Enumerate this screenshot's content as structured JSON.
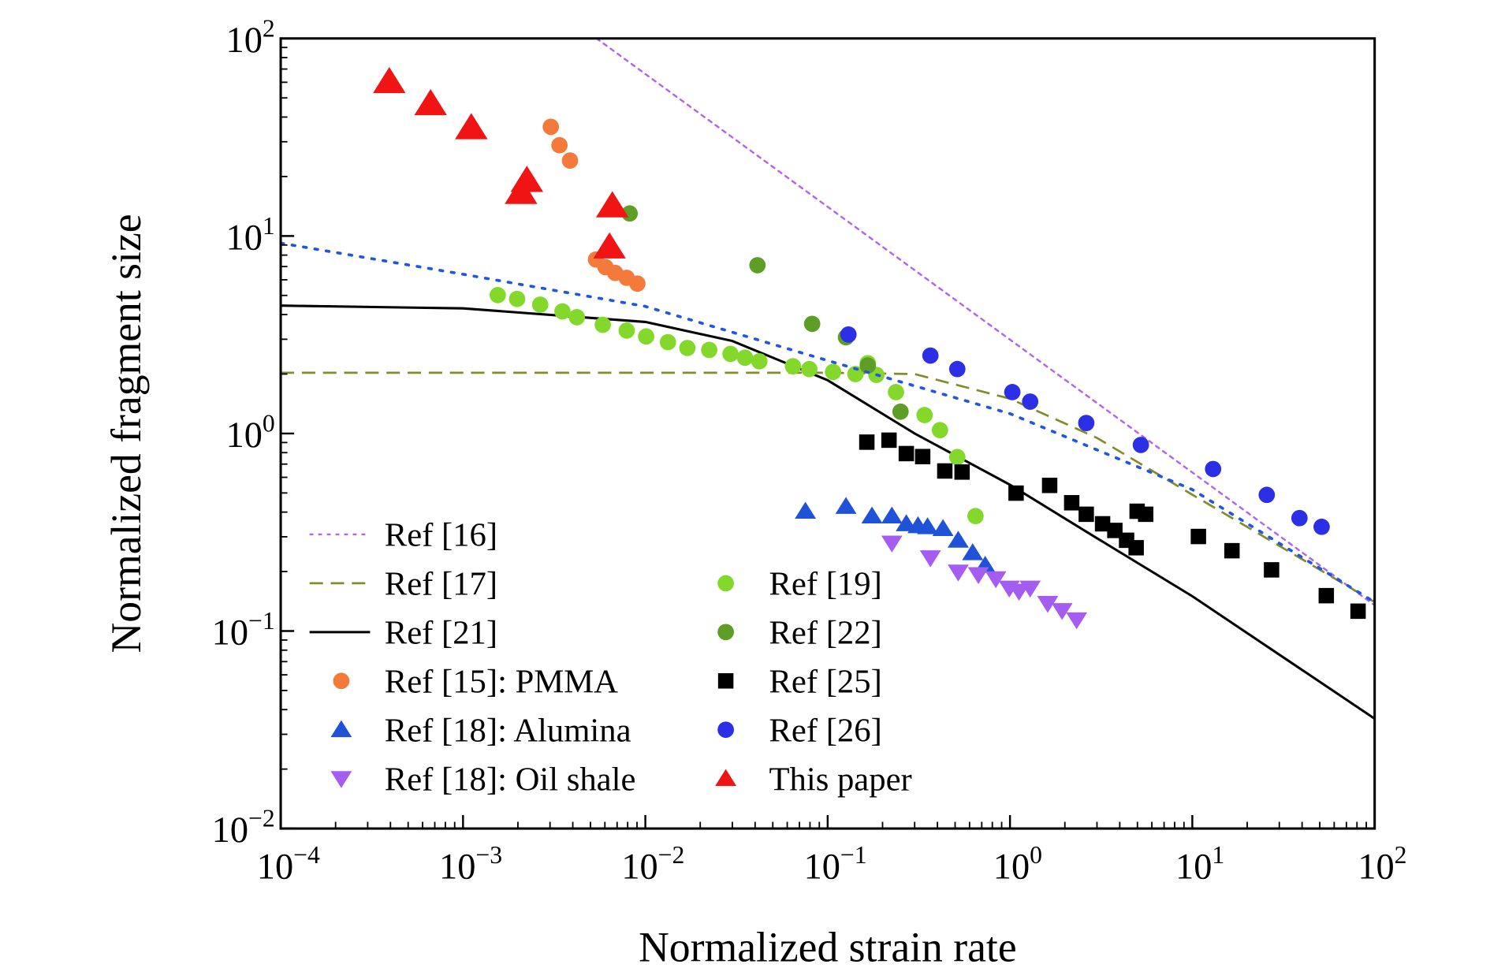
{
  "chart_data": {
    "type": "scatter",
    "xlabel": "Normalized strain rate",
    "ylabel": "Normalized fragment size",
    "xscale": "log",
    "yscale": "log",
    "xlim": [
      0.0001,
      100
    ],
    "ylim": [
      0.01,
      100
    ],
    "xticks": [
      {
        "value": 0.0001,
        "label": "10",
        "exponent": "−4"
      },
      {
        "value": 0.001,
        "label": "10",
        "exponent": "−3"
      },
      {
        "value": 0.01,
        "label": "10",
        "exponent": "−2"
      },
      {
        "value": 0.1,
        "label": "10",
        "exponent": "−1"
      },
      {
        "value": 1,
        "label": "10",
        "exponent": "0"
      },
      {
        "value": 10,
        "label": "10",
        "exponent": "1"
      },
      {
        "value": 100,
        "label": "10",
        "exponent": "2"
      }
    ],
    "yticks": [
      {
        "value": 0.01,
        "label": "10",
        "exponent": "−2"
      },
      {
        "value": 0.1,
        "label": "10",
        "exponent": "−1"
      },
      {
        "value": 1,
        "label": "10",
        "exponent": "0"
      },
      {
        "value": 10,
        "label": "10",
        "exponent": "1"
      },
      {
        "value": 100,
        "label": "10",
        "exponent": "2"
      }
    ],
    "series": [
      {
        "name": "Ref [16]",
        "kind": "line",
        "style": "dotted",
        "color": "#b264ec",
        "x": [
          0.0054,
          100
        ],
        "y": [
          100,
          0.135
        ]
      },
      {
        "name": "Ref [17]",
        "kind": "line",
        "style": "dashed",
        "color": "#858a2c",
        "x": [
          0.0001,
          0.1,
          0.3,
          1,
          3,
          10,
          30,
          100
        ],
        "y": [
          2.03,
          2.03,
          2.0,
          1.5,
          0.95,
          0.49,
          0.27,
          0.14
        ]
      },
      {
        "name": "Ref [21]",
        "kind": "line",
        "style": "solid",
        "color": "#000000",
        "x": [
          0.0001,
          0.001,
          0.01,
          0.03,
          0.1,
          0.3,
          1,
          3,
          10,
          100
        ],
        "y": [
          4.44,
          4.3,
          3.67,
          2.94,
          1.86,
          1.0,
          0.55,
          0.295,
          0.15,
          0.036
        ]
      },
      {
        "name": "Ref [15]: PMMA",
        "kind": "points",
        "marker": "circle",
        "color": "#f47a3c",
        "x": [
          0.00303,
          0.00338,
          0.00386,
          0.00536,
          0.00605,
          0.00683,
          0.0079,
          0.00904
        ],
        "y": [
          35.7,
          28.8,
          24.1,
          7.6,
          6.95,
          6.5,
          6.14,
          5.74
        ]
      },
      {
        "name": "Ref [18]: Alumina",
        "kind": "points",
        "marker": "triangle",
        "color": "#1f52d6",
        "x": [
          0.0755,
          0.126,
          0.175,
          0.225,
          0.27,
          0.313,
          0.353,
          0.429,
          0.52,
          0.624,
          0.731
        ],
        "y": [
          0.404,
          0.427,
          0.382,
          0.382,
          0.349,
          0.341,
          0.337,
          0.33,
          0.288,
          0.249,
          0.215
        ]
      },
      {
        "name": "Ref [18]: Oil shale",
        "kind": "points",
        "marker": "triangle-down",
        "color": "#a55cf0",
        "x": [
          0.225,
          0.366,
          0.52,
          0.671,
          0.836,
          0.991,
          1.12,
          1.29,
          1.61,
          1.93,
          2.32
        ],
        "y": [
          0.279,
          0.235,
          0.199,
          0.193,
          0.184,
          0.165,
          0.159,
          0.165,
          0.138,
          0.127,
          0.114
        ]
      },
      {
        "name": "Ref [19]",
        "kind": "points",
        "marker": "circle",
        "color": "#84d82c",
        "x": [
          0.00155,
          0.00198,
          0.00265,
          0.00351,
          0.00421,
          0.00584,
          0.0079,
          0.0101,
          0.0133,
          0.017,
          0.0224,
          0.0293,
          0.0352,
          0.0422,
          0.0645,
          0.0793,
          0.107,
          0.142,
          0.166,
          0.185,
          0.237,
          0.34,
          0.413,
          0.514,
          0.647
        ],
        "y": [
          5.02,
          4.8,
          4.49,
          4.15,
          3.88,
          3.55,
          3.32,
          3.1,
          2.9,
          2.71,
          2.65,
          2.53,
          2.42,
          2.32,
          2.19,
          2.12,
          2.05,
          2.0,
          2.27,
          1.98,
          1.62,
          1.24,
          1.04,
          0.76,
          0.382
        ]
      },
      {
        "name": "Ref [22]",
        "kind": "points",
        "marker": "circle",
        "color": "#5e9e26",
        "x": [
          0.0082,
          0.0412,
          0.0822,
          0.126,
          0.166,
          0.251
        ],
        "y": [
          13.0,
          7.11,
          3.59,
          3.07,
          2.21,
          1.29
        ]
      },
      {
        "name": "Ref [25]",
        "kind": "points",
        "marker": "square",
        "color": "#000000",
        "x": [
          0.164,
          0.217,
          0.27,
          0.332,
          0.439,
          0.546,
          1.08,
          1.65,
          2.18,
          2.62,
          3.22,
          3.76,
          4.36,
          4.92,
          4.98,
          5.55,
          10.8,
          16.5,
          27.2,
          54.3,
          81.1
        ],
        "y": [
          0.904,
          0.925,
          0.791,
          0.764,
          0.646,
          0.638,
          0.499,
          0.546,
          0.446,
          0.39,
          0.349,
          0.323,
          0.288,
          0.264,
          0.404,
          0.39,
          0.301,
          0.255,
          0.204,
          0.151,
          0.126
        ]
      },
      {
        "name": "Ref [26]",
        "kind": "points",
        "marker": "circle",
        "color": "#2b2fe6",
        "x": [
          0.13,
          0.366,
          0.514,
          1.03,
          1.29,
          2.62,
          5.22,
          13.0,
          25.6,
          38.7,
          51.2
        ],
        "y": [
          3.17,
          2.48,
          2.12,
          1.62,
          1.45,
          1.13,
          0.875,
          0.661,
          0.489,
          0.373,
          0.337
        ]
      },
      {
        "name": "This paper",
        "kind": "points",
        "marker": "triangle-big",
        "color": "#f01414",
        "x": [
          0.000394,
          0.000664,
          0.00111,
          0.00224,
          0.00208,
          0.00659,
          0.00636
        ],
        "y": [
          60.4,
          46.7,
          35.3,
          19.1,
          16.6,
          14.2,
          8.79
        ]
      },
      {
        "kind": "line",
        "style": "dotted-blue",
        "color": "#2454e2",
        "x": [
          0.0001,
          0.001,
          0.01,
          0.1,
          1,
          10,
          100
        ],
        "y": [
          9.2,
          6.4,
          4.4,
          2.34,
          1.26,
          0.52,
          0.14
        ]
      }
    ]
  }
}
